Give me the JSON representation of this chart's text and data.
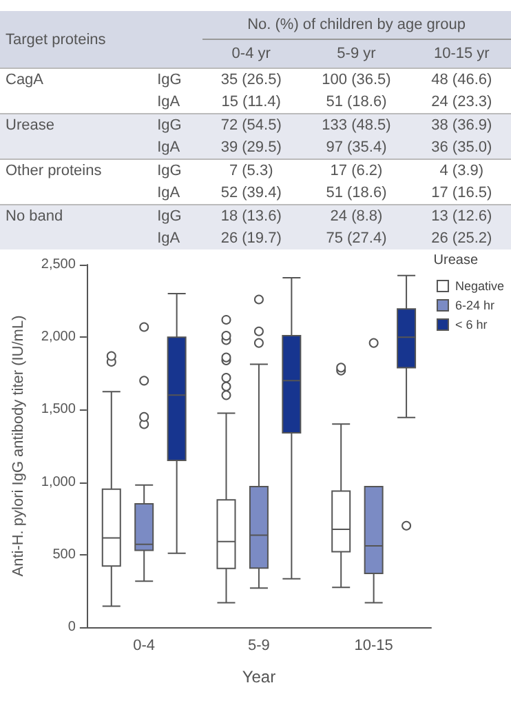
{
  "chart_data": [
    {
      "type": "other",
      "title": "No. (%) of children by age group",
      "ylabel": "Target proteins",
      "categories": [
        "0-4 yr",
        "5-9 yr",
        "10-15 yr"
      ],
      "y_categories": [
        "CagA",
        null,
        "Urease",
        null,
        "Other proteins",
        null,
        "No band",
        null
      ],
      "y2_categories": [
        "IgG",
        "IgA",
        "IgG",
        "IgA",
        "IgG",
        "IgA",
        "IgG",
        "IgA"
      ],
      "cell_labels": [
        [
          "35 (26.5)",
          "100 (36.5)",
          "48 (46.6)"
        ],
        [
          "15 (11.4)",
          "51 (18.6)",
          "24 (23.3)"
        ],
        [
          "72 (54.5)",
          "133 (48.5)",
          "38 (36.9)"
        ],
        [
          "39 (29.5)",
          "97 (35.4)",
          "36 (35.0)"
        ],
        [
          "7 (5.3)",
          "17 (6.2)",
          "4 (3.9)"
        ],
        [
          "52 (39.4)",
          "51 (18.6)",
          "17 (16.5)"
        ],
        [
          "18 (13.6)",
          "24 (8.8)",
          "13 (12.6)"
        ],
        [
          "26 (19.7)",
          "75 (27.4)",
          "26 (25.2)"
        ]
      ]
    },
    {
      "type": "box",
      "categories": [
        "0-4",
        "5-9",
        "10-15"
      ],
      "xlabel": "Year",
      "ylabel": "Anti-H. pylori IgG antibody titer (IU/mL)",
      "legend_title": "Urease",
      "legend": "top right",
      "grid": false,
      "ylim": [
        0,
        2500
      ],
      "yticks": [
        0,
        500,
        {
          "value": 1000,
          "label": "1,000"
        },
        {
          "value": 1500,
          "label": "1,500"
        },
        {
          "value": 2000,
          "label": "2,000"
        },
        {
          "value": 2500,
          "label": "2,500"
        }
      ],
      "series": [
        {
          "name": "Negative",
          "color": "#ffffff",
          "boxes": [
            {
              "low": 145,
              "q1": 422,
              "median": 615,
              "q3": 952,
              "high": 1624,
              "outliers": [
                1830,
                1870
              ]
            },
            {
              "low": 169,
              "q1": 405,
              "median": 591,
              "q3": 878,
              "high": 1476,
              "outliers": [
                1600,
                1660,
                1720,
                1840,
                1860,
                1980,
                2010,
                2120
              ]
            },
            {
              "low": 274,
              "q1": 520,
              "median": 675,
              "q3": 939,
              "high": 1401,
              "outliers": [
                1770,
                1790
              ]
            }
          ]
        },
        {
          "name": "6-24 hr",
          "color": "#7b8bc4",
          "boxes": [
            {
              "low": 317,
              "q1": 530,
              "median": 571,
              "q3": 851,
              "high": 980,
              "outliers": [
                1400,
                1450,
                1700,
                2070
              ]
            },
            {
              "low": 270,
              "q1": 408,
              "median": 635,
              "q3": 969,
              "high": 1813,
              "outliers": [
                1960,
                2040,
                2260
              ]
            },
            {
              "low": 169,
              "q1": 371,
              "median": 561,
              "q3": 969,
              "high": 969,
              "outliers": [
                1960
              ]
            }
          ]
        },
        {
          "name": "< 6 hr",
          "color": "#17358f",
          "boxes": [
            {
              "low": 510,
              "q1": 1150,
              "median": 1600,
              "q3": 2000,
              "high": 2300
            },
            {
              "low": 334,
              "q1": 1340,
              "median": 1700,
              "q3": 2010,
              "high": 2410
            },
            {
              "low": 1446,
              "q1": 1790,
              "median": 2000,
              "q3": 2195,
              "high": 2425,
              "outliers": [
                700
              ]
            }
          ]
        }
      ]
    }
  ]
}
